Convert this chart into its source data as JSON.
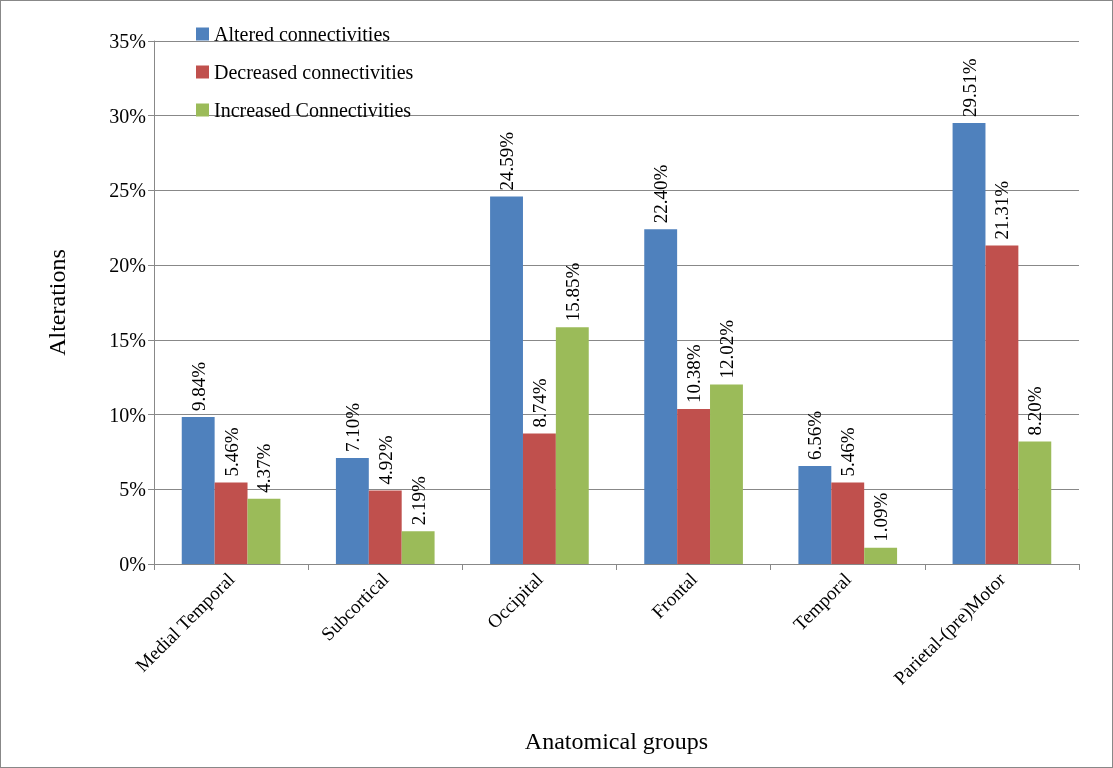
{
  "chart_data": {
    "type": "bar",
    "xlabel": "Anatomical groups",
    "ylabel": "Alterations",
    "categories": [
      "Medial Temporal",
      "Subcortical",
      "Occipital",
      "Frontal",
      "Temporal",
      "Parietal-(pre)Motor"
    ],
    "series": [
      {
        "name": "Altered connectivities",
        "color": "#4f81bd",
        "values": [
          9.84,
          7.1,
          24.59,
          22.4,
          6.56,
          29.51
        ],
        "value_labels": [
          "9.84%",
          "7.10%",
          "24.59%",
          "22.40%",
          "6.56%",
          "29.51%"
        ]
      },
      {
        "name": "Decreased connectivities",
        "color": "#c0504d",
        "values": [
          5.46,
          4.92,
          8.74,
          10.38,
          5.46,
          21.31
        ],
        "value_labels": [
          "5.46%",
          "4.92%",
          "8.74%",
          "10.38%",
          "5.46%",
          "21.31%"
        ]
      },
      {
        "name": "Increased Connectivities",
        "color": "#9bbb59",
        "values": [
          4.37,
          2.19,
          15.85,
          12.02,
          1.09,
          8.2
        ],
        "value_labels": [
          "4.37%",
          "2.19%",
          "15.85%",
          "12.02%",
          "1.09%",
          "8.20%"
        ]
      }
    ],
    "ylim": [
      0,
      35
    ],
    "yticks": [
      {
        "value": 0,
        "label": "0%"
      },
      {
        "value": 5,
        "label": "5%"
      },
      {
        "value": 10,
        "label": "10%"
      },
      {
        "value": 15,
        "label": "15%"
      },
      {
        "value": 20,
        "label": "20%"
      },
      {
        "value": 25,
        "label": "25%"
      },
      {
        "value": 30,
        "label": "30%"
      },
      {
        "value": 35,
        "label": "35%"
      }
    ],
    "grid": "y",
    "legend": "top left"
  }
}
